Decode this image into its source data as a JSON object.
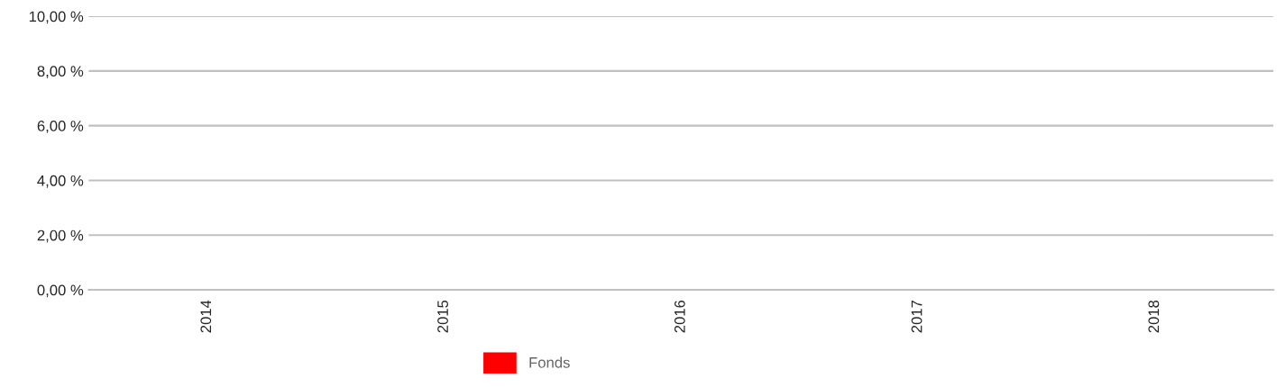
{
  "chart_data": {
    "type": "bar",
    "categories": [
      "2014",
      "2015",
      "2016",
      "2017",
      "2018"
    ],
    "series": [
      {
        "name": "Fonds",
        "color": "#ff0000",
        "values": [
          null,
          null,
          null,
          null,
          null
        ]
      }
    ],
    "ylim": [
      0,
      10
    ],
    "yticks": [
      {
        "value": 0,
        "label": "0,00 %"
      },
      {
        "value": 2,
        "label": "2,00 %"
      },
      {
        "value": 4,
        "label": "4,00 %"
      },
      {
        "value": 6,
        "label": "6,00 %"
      },
      {
        "value": 8,
        "label": "8,00 %"
      },
      {
        "value": 10,
        "label": "10,00 %"
      }
    ],
    "grid": "y",
    "legend": "bottom"
  }
}
